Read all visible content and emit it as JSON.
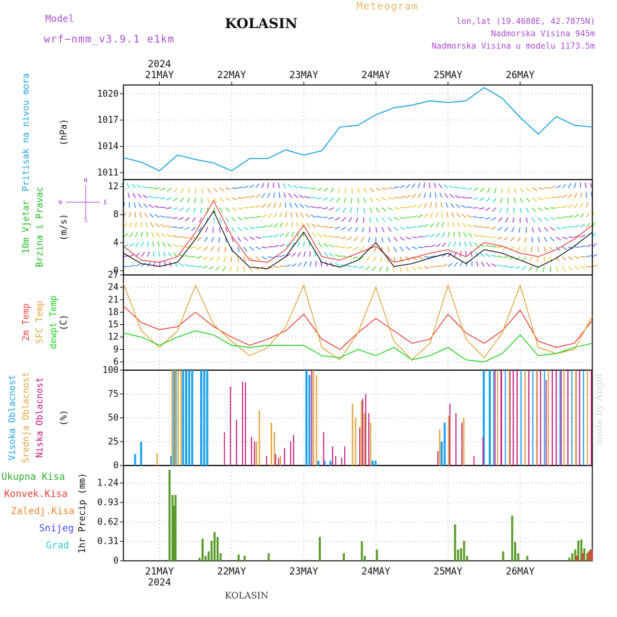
{
  "header": {
    "model_label": "Model",
    "model_name": "wrf−nmm_v3.9.1 e1km",
    "title": "KOLASIN",
    "meteogram": "Meteogram",
    "lonlat": "lon,lat (19.4688E, 42.7875N)",
    "altitude": "Nadmorska Visina 945m",
    "model_altitude": "Nadmorska Visina u modelu 1173.5m"
  },
  "footer": {
    "location": "KOLASIN",
    "credit": "made by Angel"
  },
  "colors": {
    "pressure": "#1fa3e0",
    "temp2m": "#e8413a",
    "sfc_temp": "#e0a640",
    "dewpoint": "#21d421",
    "high_cloud": "#1da1f2",
    "mid_cloud": "#e0a640",
    "low_cloud": "#c2167a",
    "total_precip": "#2fb02f",
    "convective": "#e8413a",
    "freezing": "#ee8833",
    "snow": "#4a4ae8",
    "hail": "#33cccc"
  },
  "chart_data": [
    {
      "type": "line",
      "panel": "pressure",
      "ylabel_left": "Pritisak na nivou mora",
      "unit": "(hPa)",
      "yticks": [
        1011,
        1014,
        1017,
        1020
      ],
      "ylim": [
        1010.2,
        1021.0
      ],
      "grid": true,
      "x_hours": [
        0,
        6,
        12,
        18,
        24,
        30,
        36,
        42,
        48,
        54,
        60,
        66,
        72,
        78,
        84,
        90,
        96,
        102,
        108,
        114,
        120,
        126,
        132,
        138,
        144,
        150,
        156
      ],
      "values": [
        1012.7,
        1012.2,
        1011.2,
        1013.0,
        1012.5,
        1012.1,
        1011.2,
        1012.6,
        1012.6,
        1013.6,
        1013.0,
        1013.5,
        1016.2,
        1016.4,
        1017.6,
        1018.4,
        1018.7,
        1019.2,
        1019.0,
        1019.2,
        1020.7,
        1019.5,
        1017.3,
        1015.4,
        1017.4,
        1016.4,
        1016.2
      ]
    },
    {
      "type": "line",
      "panel": "wind",
      "ylabel_left": [
        "10m Vjetar",
        "Brzina i Pravac"
      ],
      "unit": "(m/s)",
      "direction_legend": {
        "north": "N",
        "south": "S",
        "west": "W",
        "east": "E"
      },
      "yticks": [
        0,
        4,
        8,
        12
      ],
      "ylim": [
        -0.6,
        13.0
      ],
      "grid": true,
      "x_hours": [
        0,
        6,
        12,
        18,
        24,
        30,
        36,
        42,
        48,
        54,
        60,
        66,
        72,
        78,
        84,
        90,
        96,
        102,
        108,
        114,
        120,
        126,
        132,
        138,
        144,
        150,
        156
      ],
      "series": [
        {
          "values": [
            3.5,
            1.5,
            1.2,
            2.0,
            5.5,
            10.0,
            5.0,
            1.5,
            1.2,
            3.0,
            6.5,
            2.0,
            1.5,
            2.5,
            3.5,
            1.2,
            1.8,
            2.5,
            3.0,
            2.0,
            4.0,
            3.5,
            2.5,
            2.0,
            3.0,
            4.5,
            6.5
          ]
        },
        {
          "values": [
            2.5,
            1.0,
            0.6,
            1.2,
            4.5,
            8.5,
            3.0,
            0.5,
            0.3,
            2.0,
            5.5,
            1.2,
            0.5,
            1.5,
            4.0,
            0.6,
            1.0,
            1.8,
            2.5,
            1.0,
            3.0,
            2.5,
            1.5,
            0.5,
            1.8,
            3.5,
            5.5
          ]
        }
      ]
    },
    {
      "type": "line",
      "panel": "temperature",
      "ylabel_left": [
        "2m Temp",
        "SFC Temp",
        "dewpt Temp"
      ],
      "unit": "(C)",
      "yticks": [
        6,
        9,
        12,
        15,
        18,
        21,
        24,
        27
      ],
      "ylim": [
        4.0,
        27.0
      ],
      "grid": true,
      "x_hours": [
        0,
        6,
        12,
        18,
        24,
        30,
        36,
        42,
        48,
        54,
        60,
        66,
        72,
        78,
        84,
        90,
        96,
        102,
        108,
        114,
        120,
        126,
        132,
        138,
        144,
        150,
        156
      ],
      "series": [
        {
          "name": "2m Temp",
          "values": [
            19.5,
            15.5,
            13.8,
            14.5,
            18.0,
            14.5,
            12.0,
            10.0,
            11.5,
            13.5,
            17.5,
            11.5,
            9.0,
            13.0,
            16.5,
            13.5,
            10.5,
            11.5,
            17.5,
            13.0,
            10.5,
            13.5,
            18.5,
            11.0,
            9.5,
            10.5,
            16.0
          ]
        },
        {
          "name": "SFC Temp",
          "values": [
            25.0,
            13.5,
            9.5,
            13.5,
            24.5,
            15.0,
            11.0,
            7.5,
            9.5,
            14.5,
            24.5,
            9.5,
            6.5,
            13.0,
            24.0,
            11.0,
            6.5,
            10.5,
            24.5,
            11.5,
            7.0,
            13.0,
            24.5,
            9.5,
            8.0,
            9.0,
            17.0
          ]
        },
        {
          "name": "dewpt Temp",
          "values": [
            13.0,
            12.0,
            10.0,
            12.0,
            13.5,
            12.5,
            10.0,
            9.5,
            10.0,
            10.0,
            10.0,
            7.5,
            7.0,
            9.0,
            7.5,
            9.5,
            6.5,
            7.5,
            9.5,
            6.5,
            6.0,
            8.0,
            12.5,
            7.5,
            8.0,
            9.5,
            10.5
          ]
        }
      ]
    },
    {
      "type": "bar",
      "panel": "cloud",
      "ylabel_left": [
        "Visoka Oblacnost",
        "Srednja Oblacnost",
        "Niska Oblacnost"
      ],
      "unit": "(%)",
      "yticks": [
        0,
        25,
        50,
        75,
        100
      ],
      "ylim": [
        0,
        100
      ],
      "grid": true,
      "series": [
        {
          "name": "Visoka Oblacnost",
          "x_hours": [
            4,
            6,
            16,
            17,
            17.5,
            20,
            21,
            22,
            23,
            26,
            27,
            28,
            61,
            62,
            65,
            67,
            69,
            83,
            84,
            106,
            107,
            120,
            122
          ],
          "values": [
            12,
            25,
            10,
            100,
            100,
            100,
            100,
            100,
            100,
            100,
            100,
            100,
            100,
            95,
            5,
            5,
            5,
            5,
            5,
            25,
            45,
            100,
            100
          ]
        },
        {
          "name": "Srednja Oblacnost",
          "x_hours": [
            11,
            16,
            17,
            18,
            19,
            44,
            45,
            49,
            50,
            52,
            63,
            64,
            76,
            77,
            79,
            80,
            82,
            105,
            108,
            113
          ],
          "values": [
            13,
            100,
            100,
            100,
            100,
            25,
            58,
            45,
            35,
            10,
            100,
            95,
            65,
            50,
            68,
            55,
            45,
            38,
            52,
            50
          ]
        },
        {
          "name": "Niska Oblacnost",
          "x_hours": [
            33,
            35,
            37,
            39,
            40,
            42,
            43,
            47,
            50,
            51,
            53,
            55,
            56,
            62,
            66,
            69,
            70,
            72,
            73,
            78,
            79,
            80,
            81,
            104,
            108,
            110,
            112,
            116,
            119,
            123,
            125,
            128,
            133,
            137,
            140,
            145,
            150
          ],
          "values": [
            35,
            83,
            48,
            88,
            87,
            30,
            25,
            10,
            12,
            8,
            18,
            25,
            32,
            100,
            35,
            20,
            10,
            8,
            20,
            40,
            70,
            75,
            55,
            15,
            65,
            55,
            45,
            10,
            30,
            100,
            100,
            100,
            100,
            100,
            90,
            100,
            100
          ]
        }
      ]
    },
    {
      "type": "bar",
      "panel": "precipitation",
      "ylabel_left": [
        "Ukupna Kisa",
        "Konvek.Kisa",
        "Zaledj.Kisa",
        "Snijeg",
        "Grad"
      ],
      "unit": "1hr Precip (mm)",
      "yticks": [
        0,
        0.31,
        0.62,
        0.93,
        1.24
      ],
      "ylim": [
        0,
        1.52
      ],
      "grid": true,
      "series": [
        {
          "name": "Ukupna Kisa",
          "x_hours": [
            15,
            16,
            16.5,
            17,
            25,
            26,
            27,
            28,
            29,
            30,
            31,
            32,
            38,
            40,
            48,
            65,
            73,
            79,
            80,
            84,
            110,
            111,
            112,
            113,
            114,
            126,
            129,
            130,
            131,
            134,
            148,
            149,
            150,
            151,
            152,
            153,
            154,
            155
          ],
          "values": [
            1.45,
            1.05,
            0.88,
            1.05,
            0.05,
            0.35,
            0.08,
            0.15,
            0.32,
            0.46,
            0.38,
            0.12,
            0.1,
            0.08,
            0.12,
            0.38,
            0.12,
            0.31,
            0.08,
            0.18,
            0.58,
            0.18,
            0.2,
            0.32,
            0.08,
            0.15,
            0.72,
            0.3,
            0.12,
            0.08,
            0.05,
            0.12,
            0.18,
            0.32,
            0.34,
            0.2,
            0.12,
            0.18
          ]
        },
        {
          "name": "Konvek.Kisa",
          "x_hours": [
            150,
            152,
            154,
            155
          ],
          "values": [
            0.08,
            0.12,
            0.15,
            0.18
          ]
        }
      ]
    }
  ],
  "x_axis": {
    "year": "2024",
    "dates": [
      "21MAY",
      "22MAY",
      "23MAY",
      "24MAY",
      "25MAY",
      "26MAY"
    ],
    "date_hours": [
      12,
      36,
      60,
      84,
      108,
      132
    ],
    "range_hours": [
      0,
      156
    ]
  }
}
